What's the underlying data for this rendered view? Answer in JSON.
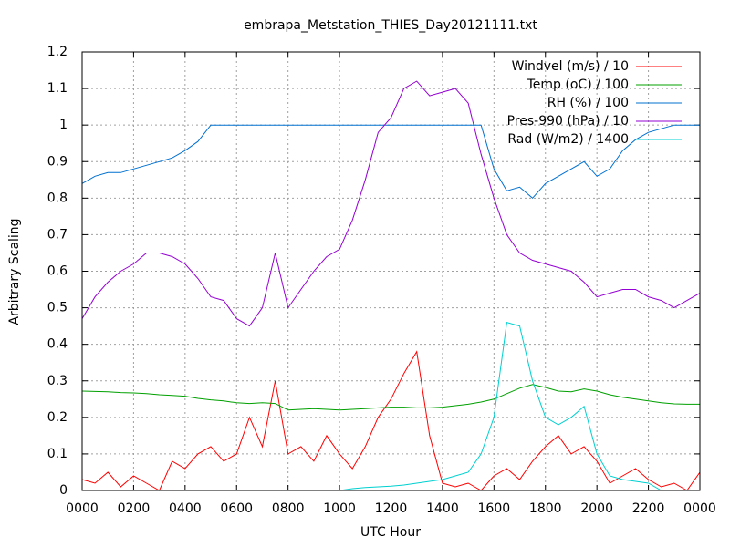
{
  "chart_data": {
    "type": "line",
    "title": "embrapa_Metstation_THIES_Day20121111.txt",
    "x_label": "UTC Hour",
    "y_label": "Arbitrary Scaling",
    "xlim": [
      0,
      24
    ],
    "ylim": [
      0,
      1.2
    ],
    "xticks": [
      {
        "value": 0,
        "label": "0000"
      },
      {
        "value": 2,
        "label": "0200"
      },
      {
        "value": 4,
        "label": "0400"
      },
      {
        "value": 6,
        "label": "0600"
      },
      {
        "value": 8,
        "label": "0800"
      },
      {
        "value": 10,
        "label": "1000"
      },
      {
        "value": 12,
        "label": "1200"
      },
      {
        "value": 14,
        "label": "1400"
      },
      {
        "value": 16,
        "label": "1600"
      },
      {
        "value": 18,
        "label": "1800"
      },
      {
        "value": 20,
        "label": "2000"
      },
      {
        "value": 22,
        "label": "2200"
      },
      {
        "value": 24,
        "label": "0000"
      }
    ],
    "yticks": [
      0,
      0.1,
      0.2,
      0.3,
      0.4,
      0.5,
      0.6,
      0.7,
      0.8,
      0.9,
      1,
      1.1,
      1.2
    ],
    "grid": true,
    "legend": "top-right",
    "x": [
      0,
      0.5,
      1,
      1.5,
      2,
      2.5,
      3,
      3.5,
      4,
      4.5,
      5,
      5.5,
      6,
      6.5,
      7,
      7.5,
      8,
      8.5,
      9,
      9.5,
      10,
      10.5,
      11,
      11.5,
      12,
      12.5,
      13,
      13.5,
      14,
      14.5,
      15,
      15.5,
      16,
      16.5,
      17,
      17.5,
      18,
      18.5,
      19,
      19.5,
      20,
      20.5,
      21,
      21.5,
      22,
      22.5,
      23,
      23.5,
      24
    ],
    "series": [
      {
        "name": "Windvel (m/s) / 10",
        "color": "#ff0000",
        "values": [
          0.03,
          0.02,
          0.05,
          0.01,
          0.04,
          0.02,
          0.0,
          0.08,
          0.06,
          0.1,
          0.12,
          0.08,
          0.1,
          0.2,
          0.12,
          0.3,
          0.1,
          0.12,
          0.08,
          0.15,
          0.1,
          0.06,
          0.12,
          0.2,
          0.25,
          0.32,
          0.38,
          0.15,
          0.02,
          0.01,
          0.02,
          0.0,
          0.04,
          0.06,
          0.03,
          0.08,
          0.12,
          0.15,
          0.1,
          0.12,
          0.08,
          0.02,
          0.04,
          0.06,
          0.03,
          0.01,
          0.02,
          0.0,
          0.05
        ]
      },
      {
        "name": "Temp (oC) / 100",
        "color": "#00a000",
        "values": [
          0.272,
          0.271,
          0.27,
          0.268,
          0.267,
          0.265,
          0.262,
          0.26,
          0.258,
          0.252,
          0.248,
          0.245,
          0.24,
          0.238,
          0.24,
          0.238,
          0.22,
          0.222,
          0.224,
          0.222,
          0.22,
          0.222,
          0.224,
          0.226,
          0.228,
          0.228,
          0.226,
          0.226,
          0.228,
          0.232,
          0.236,
          0.242,
          0.25,
          0.265,
          0.28,
          0.29,
          0.282,
          0.272,
          0.27,
          0.278,
          0.272,
          0.262,
          0.255,
          0.25,
          0.245,
          0.24,
          0.237,
          0.236,
          0.236
        ]
      },
      {
        "name": "RH (%) / 100",
        "color": "#0070d0",
        "values": [
          0.84,
          0.86,
          0.87,
          0.87,
          0.88,
          0.89,
          0.9,
          0.91,
          0.93,
          0.955,
          1.0,
          1.0,
          1.0,
          1.0,
          1.0,
          1.0,
          1.0,
          1.0,
          1.0,
          1.0,
          1.0,
          1.0,
          1.0,
          1.0,
          1.0,
          1.0,
          1.0,
          1.0,
          1.0,
          1.0,
          1.0,
          1.0,
          0.88,
          0.82,
          0.83,
          0.8,
          0.84,
          0.86,
          0.88,
          0.9,
          0.86,
          0.88,
          0.93,
          0.96,
          0.98,
          0.99,
          1.0,
          1.0,
          1.0
        ]
      },
      {
        "name": "Pres-990 (hPa) / 10",
        "color": "#9400d3",
        "values": [
          0.47,
          0.53,
          0.57,
          0.6,
          0.62,
          0.65,
          0.65,
          0.64,
          0.62,
          0.58,
          0.53,
          0.52,
          0.47,
          0.45,
          0.5,
          0.65,
          0.5,
          0.55,
          0.6,
          0.64,
          0.66,
          0.74,
          0.85,
          0.98,
          1.02,
          1.1,
          1.12,
          1.08,
          1.09,
          1.1,
          1.06,
          0.92,
          0.8,
          0.7,
          0.65,
          0.63,
          0.62,
          0.61,
          0.6,
          0.57,
          0.53,
          0.54,
          0.55,
          0.55,
          0.53,
          0.52,
          0.5,
          0.52,
          0.54
        ]
      },
      {
        "name": "Rad (W/m2) / 1400",
        "color": "#00d0d0",
        "values": [
          0,
          0,
          0,
          0,
          0,
          0,
          0,
          0,
          0,
          0,
          0,
          0,
          0,
          0,
          0,
          0,
          0,
          0,
          0,
          0,
          0,
          0.005,
          0.008,
          0.01,
          0.012,
          0.015,
          0.02,
          0.025,
          0.03,
          0.04,
          0.05,
          0.1,
          0.2,
          0.46,
          0.45,
          0.3,
          0.2,
          0.18,
          0.2,
          0.23,
          0.1,
          0.04,
          0.03,
          0.025,
          0.02,
          0,
          0,
          0,
          0
        ]
      }
    ]
  }
}
